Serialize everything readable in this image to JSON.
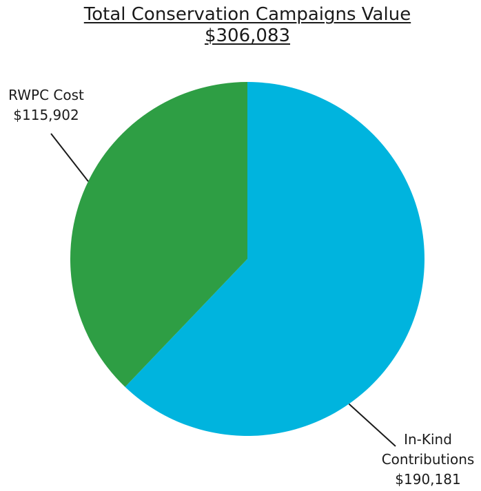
{
  "chart_data": {
    "type": "pie",
    "title": "Total Conservation Campaigns Value",
    "subtitle": "$306,083",
    "categories": [
      "In-Kind Contributions",
      "RWPC Cost"
    ],
    "values": [
      190181,
      115902
    ],
    "value_labels": [
      "$190,181",
      "$115,902"
    ],
    "label_lines": [
      [
        "In-Kind",
        "Contributions"
      ],
      [
        "RWPC Cost"
      ]
    ],
    "colors": [
      "#00b4de",
      "#2e9e44"
    ],
    "start_angle_deg": 0,
    "direction": "clockwise"
  }
}
